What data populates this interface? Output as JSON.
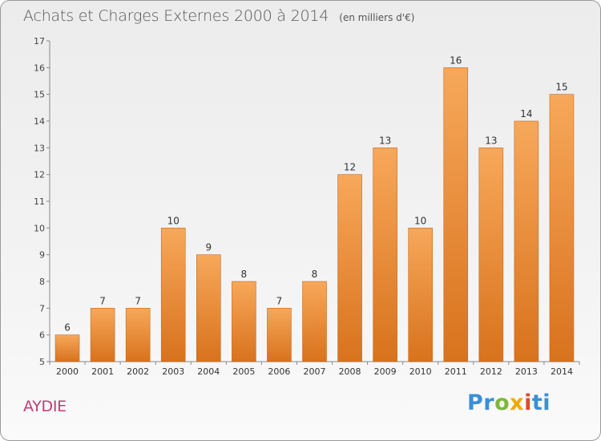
{
  "header": {
    "title": "Achats et Charges Externes 2000 à 2014",
    "unit": "(en milliers d'€)"
  },
  "commune": "AYDIE",
  "logo": {
    "parts": [
      "Pr",
      "o",
      "x",
      "i",
      "ti"
    ]
  },
  "colors": {
    "bar_top": "#f7a85a",
    "bar_bottom": "#d8721d",
    "title": "#555555",
    "commune": "#c23b74"
  },
  "chart_data": {
    "type": "bar",
    "title": "Achats et Charges Externes 2000 à 2014",
    "subtitle": "(en milliers d'€)",
    "xlabel": "",
    "ylabel": "",
    "categories": [
      "2000",
      "2001",
      "2002",
      "2003",
      "2004",
      "2005",
      "2006",
      "2007",
      "2008",
      "2009",
      "2010",
      "2011",
      "2012",
      "2013",
      "2014"
    ],
    "values": [
      6,
      7,
      7,
      10,
      9,
      8,
      7,
      8,
      12,
      13,
      10,
      16,
      13,
      14,
      15
    ],
    "ylim": [
      5,
      17
    ],
    "yticks": [
      5,
      6,
      7,
      8,
      9,
      10,
      11,
      12,
      13,
      14,
      15,
      16,
      17
    ],
    "grid": false,
    "data_labels": true
  }
}
